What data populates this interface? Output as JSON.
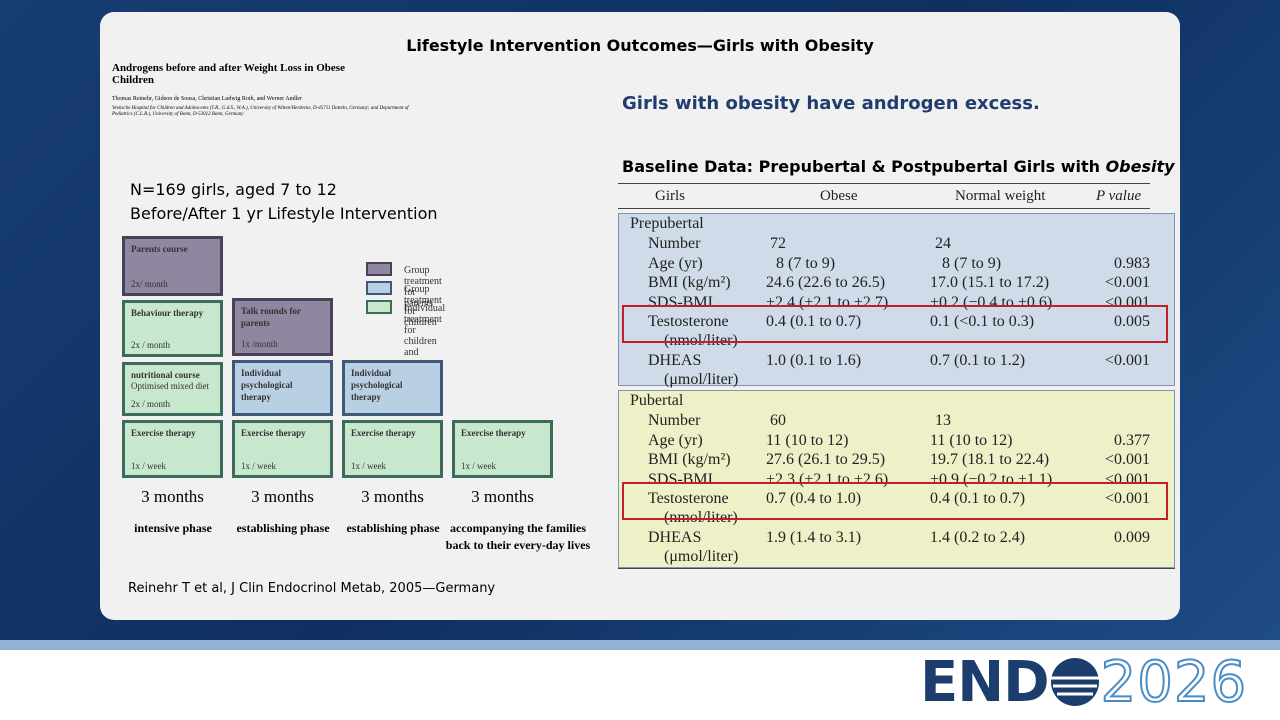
{
  "slide": {
    "title": "Lifestyle Intervention Outcomes—Girls with Obesity",
    "paper": {
      "title": "Androgens before and after Weight Loss in Obese Children",
      "authors": "Thomas Reinehr, Gideon de Sousa, Christian Ludwig Roth, and Werner Andler",
      "affiliation": "Vestische Hospital for Children and Adolescents (T.R., G.d.S., W.A.), University of Witten/Herdecke, D-45711 Datteln, Germany; and Department of Pediatrics (C.L.R.), University of Bonn, D-53012 Bonn, Germany"
    },
    "study": [
      "N=169 girls, aged 7 to 12",
      "Before/After 1 yr Lifestyle Intervention"
    ],
    "legend": [
      {
        "label": "Group treatment for parents",
        "kind": "parents"
      },
      {
        "label": "Group treatment for children",
        "kind": "children"
      },
      {
        "label": "Individual treatment for children and parents",
        "kind": "individual"
      }
    ],
    "columns": [
      {
        "boxes": [
          {
            "title": "Parents course",
            "frequency": "2x/ month",
            "kind": "parents"
          },
          {
            "title": "Behaviour therapy",
            "frequency": "2x / month",
            "kind": "individual"
          },
          {
            "title": "nutritional course",
            "subtitle": "Optimised mixed diet",
            "frequency": "2x / month",
            "kind": "individual"
          },
          {
            "title": "Exercise therapy",
            "frequency": "1x / week",
            "kind": "individual"
          }
        ],
        "duration": "3 months",
        "phase": "intensive phase"
      },
      {
        "boxes": [
          {
            "title": "Talk rounds for parents",
            "frequency": "1x /month",
            "kind": "parents"
          },
          {
            "title": "Individual psychological therapy",
            "kind": "children"
          },
          {
            "title": "Exercise therapy",
            "frequency": "1x / week",
            "kind": "individual"
          }
        ],
        "duration": "3 months",
        "phase": "establishing phase"
      },
      {
        "boxes": [
          {
            "title": "Individual psychological therapy",
            "kind": "children"
          },
          {
            "title": "Exercise therapy",
            "frequency": "1x / week",
            "kind": "individual"
          }
        ],
        "duration": "3 months",
        "phase": "establishing phase"
      },
      {
        "boxes": [
          {
            "title": "Exercise therapy",
            "frequency": "1x / week",
            "kind": "individual"
          }
        ],
        "duration": "3 months",
        "phase": "accompanying the families back to their every-day lives"
      }
    ],
    "citation": "Reinehr T et al, J Clin Endocrinol Metab, 2005—Germany",
    "headline": "Girls with obesity have androgen excess.",
    "table": {
      "title": "Baseline Data: Prepubertal & Postpubertal Girls with ",
      "title_emphasis": "Obesity",
      "header": [
        "Girls",
        "Obese",
        "Normal weight",
        "P value"
      ],
      "groups": [
        {
          "name": "Prepubertal",
          "rows": [
            {
              "label": "Number",
              "obese": "72",
              "normal": "24",
              "p": ""
            },
            {
              "label": "Age (yr)",
              "obese": "8 (7 to 9)",
              "normal": "8 (7 to 9)",
              "p": "0.983"
            },
            {
              "label": "BMI (kg/m²)",
              "obese": "24.6 (22.6 to 26.5)",
              "normal": "17.0 (15.1 to 17.2)",
              "p": "<0.001"
            },
            {
              "label": "SDS-BMI",
              "obese": "+2.4 (+2.1 to +2.7)",
              "normal": "+0.2 (−0.4 to +0.6)",
              "p": "<0.001"
            },
            {
              "label": "Testosterone",
              "unit": "(nmol/liter)",
              "obese": "0.4 (0.1 to 0.7)",
              "normal": "0.1 (<0.1 to 0.3)",
              "p": "0.005"
            },
            {
              "label": "DHEAS",
              "unit": "(μmol/liter)",
              "obese": "1.0 (0.1 to 1.6)",
              "normal": "0.7 (0.1 to 1.2)",
              "p": "<0.001"
            }
          ]
        },
        {
          "name": "Pubertal",
          "rows": [
            {
              "label": "Number",
              "obese": "60",
              "normal": "13",
              "p": ""
            },
            {
              "label": "Age (yr)",
              "obese": "11 (10 to 12)",
              "normal": "11 (10 to 12)",
              "p": "0.377"
            },
            {
              "label": "BMI (kg/m²)",
              "obese": "27.6 (26.1 to 29.5)",
              "normal": "19.7 (18.1 to 22.4)",
              "p": "<0.001"
            },
            {
              "label": "SDS-BMI",
              "obese": "+2.3 (+2.1 to +2.6)",
              "normal": "+0.9 (−0.2 to +1.1)",
              "p": "<0.001"
            },
            {
              "label": "Testosterone",
              "unit": "(nmol/liter)",
              "obese": "0.7 (0.4 to 1.0)",
              "normal": "0.4 (0.1 to 0.7)",
              "p": "<0.001"
            },
            {
              "label": "DHEAS",
              "unit": "(μmol/liter)",
              "obese": "1.9 (1.4 to 3.1)",
              "normal": "1.4 (0.2 to 2.4)",
              "p": "0.009"
            }
          ]
        }
      ]
    },
    "logo": {
      "left": "END",
      "right": "2026"
    }
  }
}
